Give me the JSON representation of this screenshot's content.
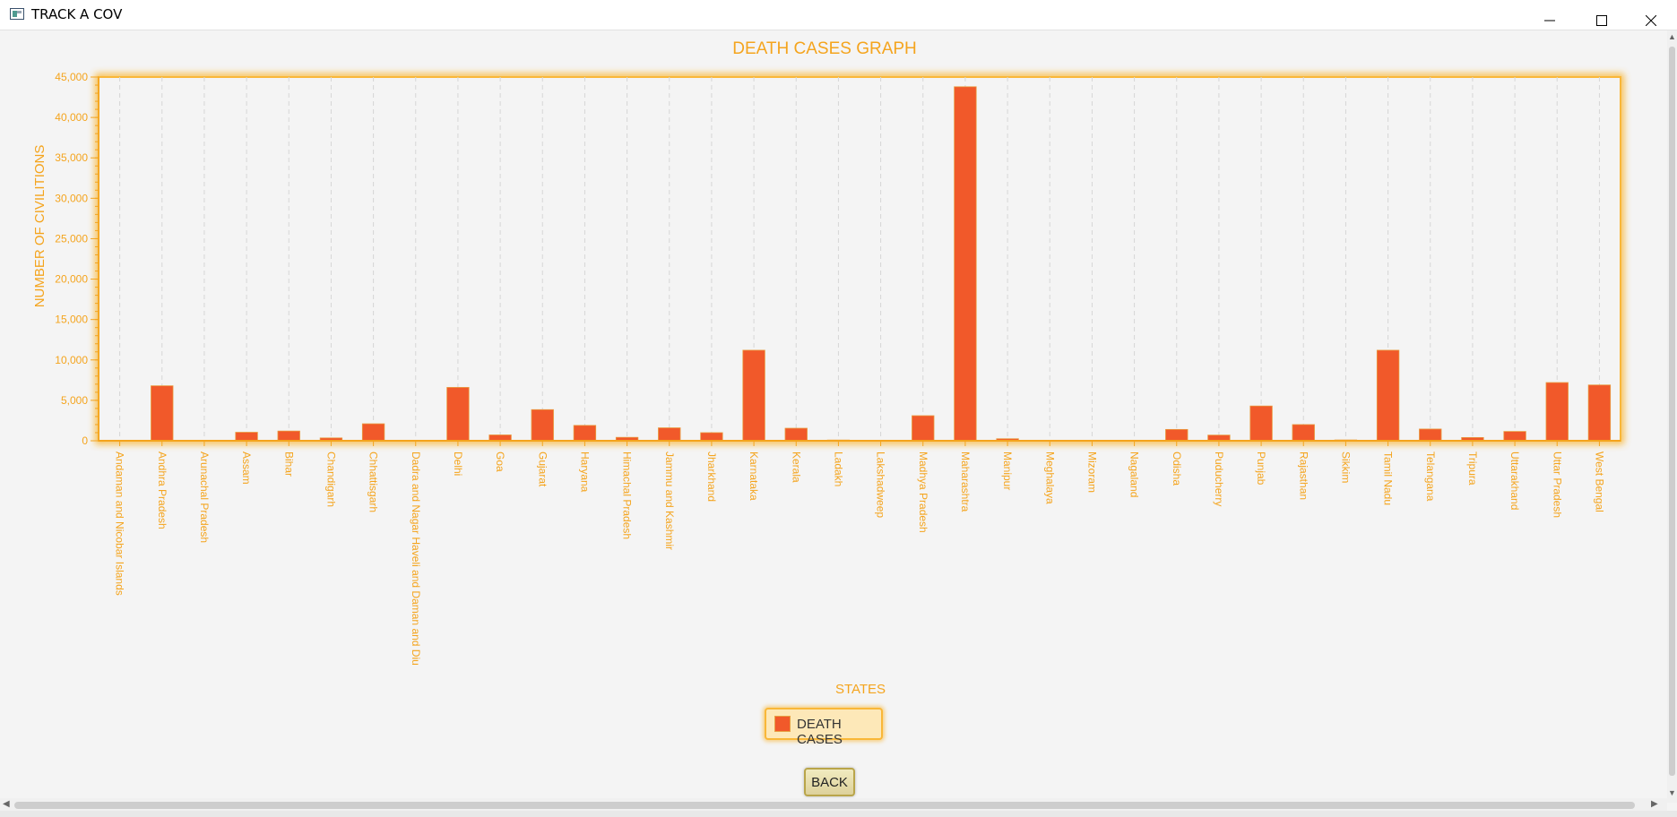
{
  "window": {
    "title": "TRACK A COV",
    "minimize_glyph": "minimize-icon",
    "maximize_glyph": "maximize-icon",
    "close_glyph": "close-icon"
  },
  "colors": {
    "accent": "#f4a41d",
    "bar": "#f1592a",
    "grid": "#d6d6d6",
    "plot_border": "#f9b738"
  },
  "chart_data": {
    "type": "bar",
    "title": "DEATH CASES GRAPH",
    "xlabel": "STATES",
    "ylabel": "NUMBER OF CIVILITIONS",
    "ylim": [
      0,
      45000
    ],
    "ytick_step": 5000,
    "grid": true,
    "legend_position": "bottom-center",
    "categories": [
      "Andaman and Nicobar Islands",
      "Andhra Pradesh",
      "Arunachal Pradesh",
      "Assam",
      "Bihar",
      "Chandigarh",
      "Chhattisgarh",
      "Dadra and Nagar Haveli and Daman and Diu",
      "Delhi",
      "Goa",
      "Gujarat",
      "Haryana",
      "Himachal Pradesh",
      "Jammu and Kashmir",
      "Jharkhand",
      "Karnataka",
      "Kerala",
      "Ladakh",
      "Lakshadweep",
      "Madhya Pradesh",
      "Maharashtra",
      "Manipur",
      "Meghalaya",
      "Mizoram",
      "Nagaland",
      "Odisha",
      "Puducherry",
      "Punjab",
      "Rajasthan",
      "Sikkim",
      "Tamil Nadu",
      "Telangana",
      "Tripura",
      "Uttarakhand",
      "Uttar Pradesh",
      "West Bengal"
    ],
    "series": [
      {
        "name": "DEATH CASES",
        "values": [
          60,
          6800,
          30,
          1050,
          1200,
          350,
          2100,
          4,
          6600,
          720,
          3850,
          1900,
          420,
          1600,
          1000,
          11200,
          1550,
          90,
          0,
          3100,
          43800,
          250,
          50,
          0,
          20,
          1400,
          700,
          4300,
          2000,
          100,
          11200,
          1450,
          400,
          1150,
          7200,
          6900
        ]
      }
    ]
  },
  "legend": {
    "label": "DEATH CASES"
  },
  "back_button": {
    "label": "BACK"
  }
}
